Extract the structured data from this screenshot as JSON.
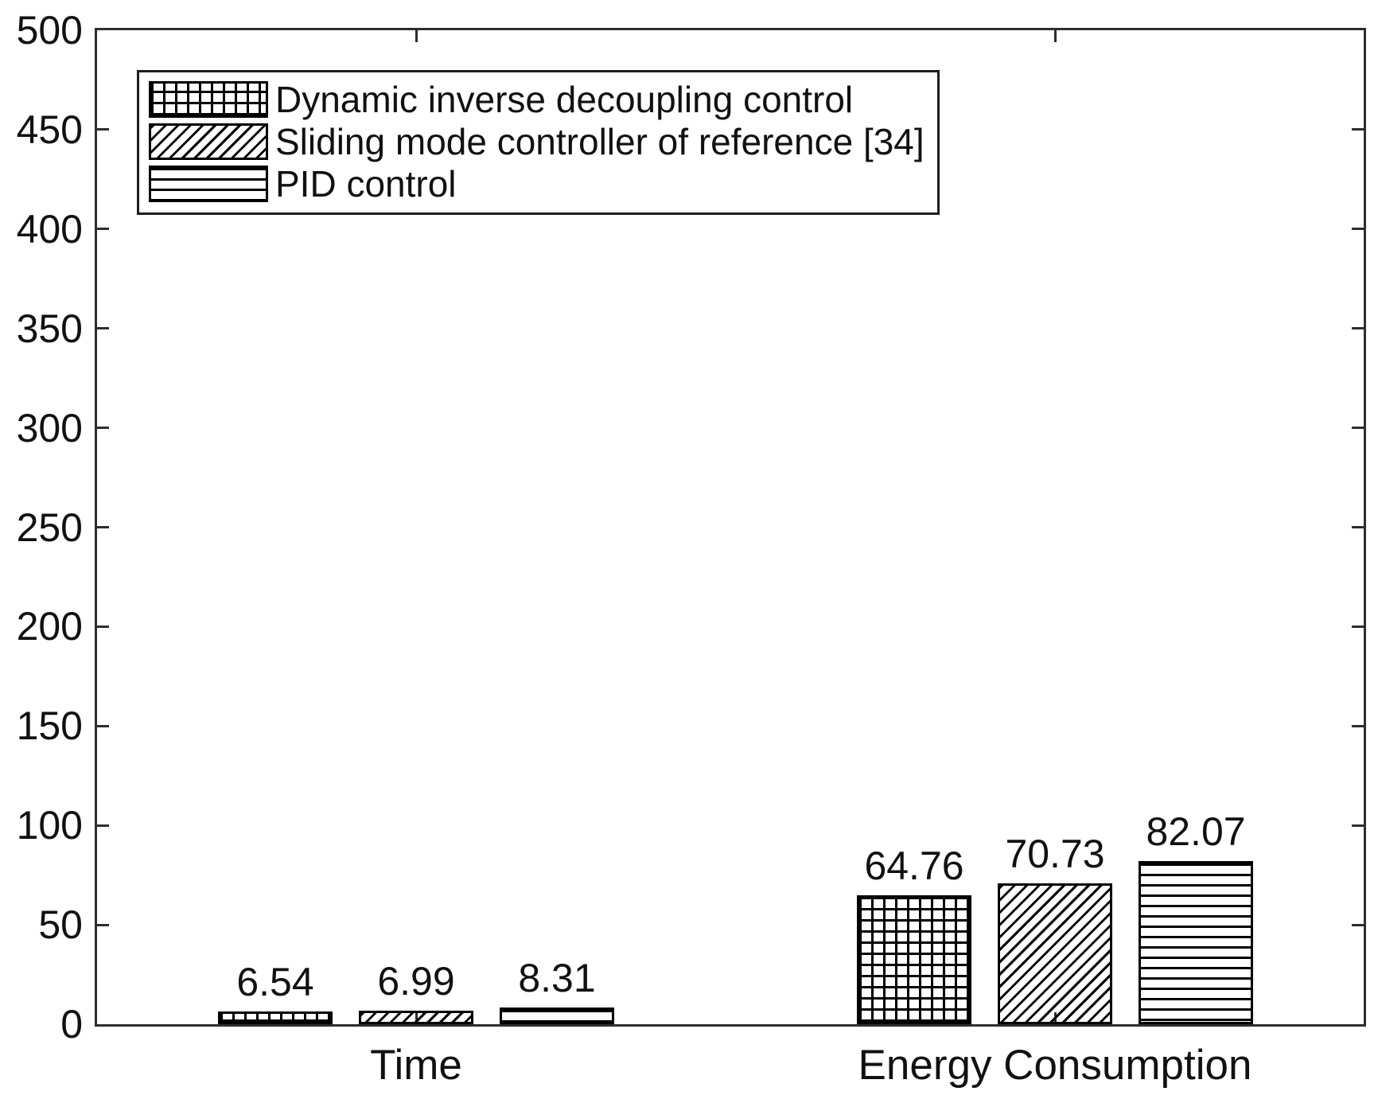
{
  "chart_data": {
    "type": "bar",
    "title": "",
    "xlabel": "",
    "ylabel": "",
    "categories": [
      "Time",
      "Energy Consumption"
    ],
    "series": [
      {
        "name": "Dynamic inverse decoupling control",
        "pattern": "crosshatch",
        "values": [
          6.54,
          64.76
        ],
        "labels": [
          "6.54",
          "64.76"
        ]
      },
      {
        "name": "Sliding mode controller of reference [34]",
        "pattern": "diagonal",
        "values": [
          6.99,
          70.73
        ],
        "labels": [
          "6.99",
          "70.73"
        ]
      },
      {
        "name": "PID control",
        "pattern": "horizontal",
        "values": [
          8.31,
          82.07
        ],
        "labels": [
          "8.31",
          "82.07"
        ]
      }
    ],
    "ylim": [
      0,
      500
    ],
    "yticks": [
      0,
      50,
      100,
      150,
      200,
      250,
      300,
      350,
      400,
      450,
      500
    ],
    "legend_position": "top-left",
    "grid": false,
    "bar_fill": "#ffffff",
    "hatch_color": "#000000",
    "axis_color": "#2e2e2e",
    "text_color": "#111111"
  }
}
